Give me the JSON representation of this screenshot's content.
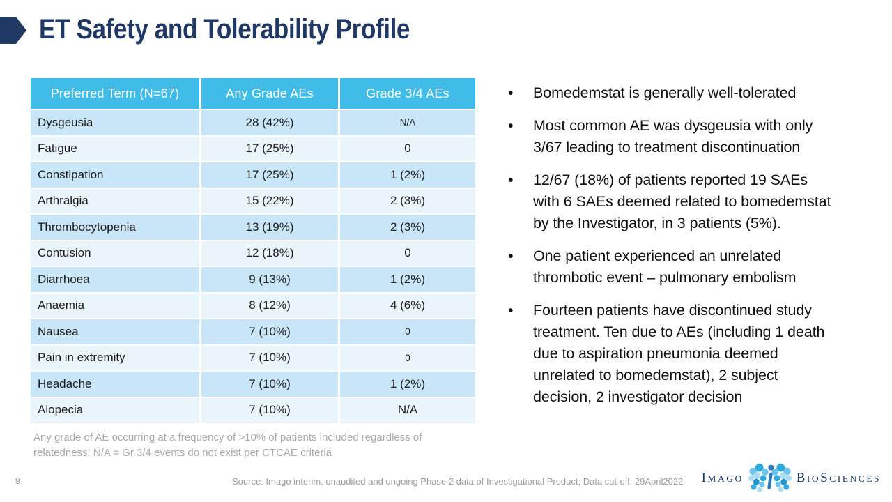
{
  "slide": {
    "title": "ET Safety and Tolerability Profile",
    "page_number": "9",
    "source": "Source: Imago interim, unaudited and ongoing Phase 2 data of Investigational Product;  Data cut-off: 29April2022",
    "bullet_char": "•"
  },
  "table": {
    "headers": [
      "Preferred Term (N=67)",
      "Any Grade AEs",
      "Grade 3/4 AEs"
    ],
    "rows": [
      {
        "term": "Dysgeusia",
        "any_grade": "28 (42%)",
        "grade_3_4": "N/A",
        "small": true
      },
      {
        "term": "Fatigue",
        "any_grade": "17 (25%)",
        "grade_3_4": "0",
        "small": false
      },
      {
        "term": "Constipation",
        "any_grade": "17 (25%)",
        "grade_3_4": "1 (2%)",
        "small": false
      },
      {
        "term": "Arthralgia",
        "any_grade": "15 (22%)",
        "grade_3_4": "2 (3%)",
        "small": false
      },
      {
        "term": "Thrombocytopenia",
        "any_grade": "13 (19%)",
        "grade_3_4": "2 (3%)",
        "small": false
      },
      {
        "term": "Contusion",
        "any_grade": "12 (18%)",
        "grade_3_4": "0",
        "small": false
      },
      {
        "term": "Diarrhoea",
        "any_grade": "9 (13%)",
        "grade_3_4": "1 (2%)",
        "small": false
      },
      {
        "term": "Anaemia",
        "any_grade": "8 (12%)",
        "grade_3_4": "4 (6%)",
        "small": false
      },
      {
        "term": "Nausea",
        "any_grade": "7 (10%)",
        "grade_3_4": "0",
        "small": true
      },
      {
        "term": "Pain in extremity",
        "any_grade": "7 (10%)",
        "grade_3_4": "0",
        "small": true
      },
      {
        "term": "Headache",
        "any_grade": "7 (10%)",
        "grade_3_4": "1 (2%)",
        "small": false
      },
      {
        "term": "Alopecia",
        "any_grade": "7 (10%)",
        "grade_3_4": "N/A",
        "small": false
      }
    ],
    "footnote": "Any grade of AE occurring at a frequency of >10% of patients included regardless of\nrelatedness; N/A = Gr 3/4 events do not exist per CTCAE criteria"
  },
  "bullets": [
    "Bomedemstat is generally well-tolerated",
    "Most common AE was dysgeusia with only\n3/67 leading to treatment discontinuation",
    "12/67 (18%) of patients reported 19 SAEs\nwith 6 SAEs deemed related to bomedemstat\nby the Investigator, in 3 patients (5%).",
    "One patient experienced an unrelated\nthrombotic event – pulmonary embolism",
    "Fourteen patients have discontinued study\ntreatment.  Ten due to AEs (including 1 death\ndue to aspiration pneumonia deemed\nunrelated to bomedemstat), 2 subject\ndecision, 2 investigator decision"
  ],
  "logo": {
    "word1": "Imago",
    "word2": "BioSciences"
  },
  "colors": {
    "header_bg": "#3FBCE8",
    "row_dark": "#C8E6F7",
    "row_light": "#EAF4FB",
    "title_navy": "#1F3864",
    "footnote_gray": "#A9A9A9",
    "logo_navy": "#1B3A6B",
    "text_color": "#1A1A1A"
  }
}
